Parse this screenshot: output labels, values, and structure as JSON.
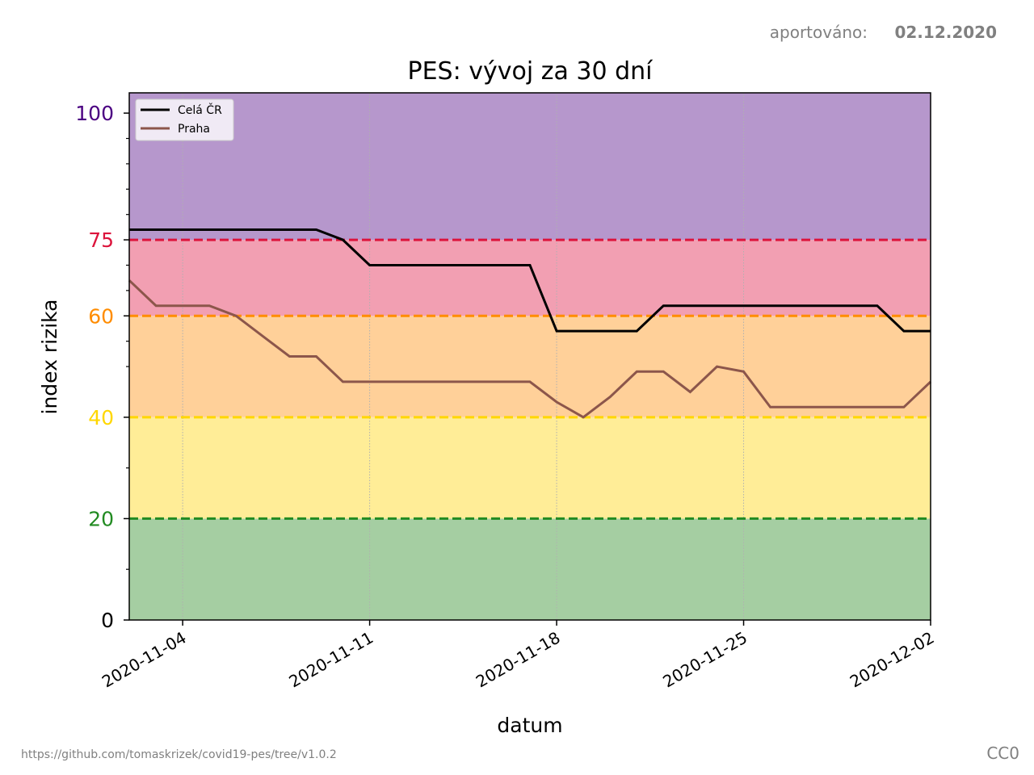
{
  "header": {
    "reported_label": "aportováno:",
    "reported_date": "02.12.2020"
  },
  "footer": {
    "source_url": "https://github.com/tomaskrizek/covid19-pes/tree/v1.0.2",
    "license": "CC0"
  },
  "chart_data": {
    "type": "line",
    "title": "PES: vývoj za 30 dní",
    "xlabel": "datum",
    "ylabel": "index rizika",
    "xlim": [
      "2020-11-02",
      "2020-12-02"
    ],
    "ylim": [
      0,
      104
    ],
    "x_ticks": [
      "2020-11-04",
      "2020-11-11",
      "2020-11-18",
      "2020-11-25",
      "2020-12-02"
    ],
    "y_ticks": [
      {
        "value": 0,
        "label": "0",
        "color": "#000000"
      },
      {
        "value": 20,
        "label": "20",
        "color": "#228b22"
      },
      {
        "value": 40,
        "label": "40",
        "color": "#ffd700"
      },
      {
        "value": 60,
        "label": "60",
        "color": "#ff8c00"
      },
      {
        "value": 75,
        "label": "75",
        "color": "#dc143c"
      },
      {
        "value": 100,
        "label": "100",
        "color": "#4b0082"
      }
    ],
    "y_minor_ticks": [
      10,
      30,
      50,
      55,
      65,
      70,
      80,
      85,
      90,
      95
    ],
    "grid": "vertical dotted at x ticks",
    "bands": [
      {
        "from": 0,
        "to": 20,
        "color": "#a5cea2"
      },
      {
        "from": 20,
        "to": 40,
        "color": "#ffed97"
      },
      {
        "from": 40,
        "to": 60,
        "color": "#ffd099"
      },
      {
        "from": 60,
        "to": 75,
        "color": "#f29fb2"
      },
      {
        "from": 75,
        "to": 104,
        "color": "#b697cc"
      }
    ],
    "thresholds": [
      {
        "value": 20,
        "color": "#228b22"
      },
      {
        "value": 40,
        "color": "#ffd700"
      },
      {
        "value": 60,
        "color": "#ff8c00"
      },
      {
        "value": 75,
        "color": "#dc143c"
      }
    ],
    "legend_position": "top-left",
    "x": [
      "2020-11-02",
      "2020-11-03",
      "2020-11-04",
      "2020-11-05",
      "2020-11-06",
      "2020-11-07",
      "2020-11-08",
      "2020-11-09",
      "2020-11-10",
      "2020-11-11",
      "2020-11-12",
      "2020-11-13",
      "2020-11-14",
      "2020-11-15",
      "2020-11-16",
      "2020-11-17",
      "2020-11-18",
      "2020-11-19",
      "2020-11-20",
      "2020-11-21",
      "2020-11-22",
      "2020-11-23",
      "2020-11-24",
      "2020-11-25",
      "2020-11-26",
      "2020-11-27",
      "2020-11-28",
      "2020-11-29",
      "2020-11-30",
      "2020-12-01",
      "2020-12-02"
    ],
    "series": [
      {
        "name": "Celá ČR",
        "color": "#000000",
        "values": [
          77,
          77,
          77,
          77,
          77,
          77,
          77,
          77,
          75,
          70,
          70,
          70,
          70,
          70,
          70,
          70,
          57,
          57,
          57,
          57,
          62,
          62,
          62,
          62,
          62,
          62,
          62,
          62,
          62,
          57,
          57
        ]
      },
      {
        "name": "Praha",
        "color": "#8c564b",
        "values": [
          67,
          62,
          62,
          62,
          60,
          56,
          52,
          52,
          47,
          47,
          47,
          47,
          47,
          47,
          47,
          47,
          43,
          40,
          44,
          49,
          49,
          45,
          50,
          49,
          42,
          42,
          42,
          42,
          42,
          42,
          47
        ]
      }
    ]
  }
}
